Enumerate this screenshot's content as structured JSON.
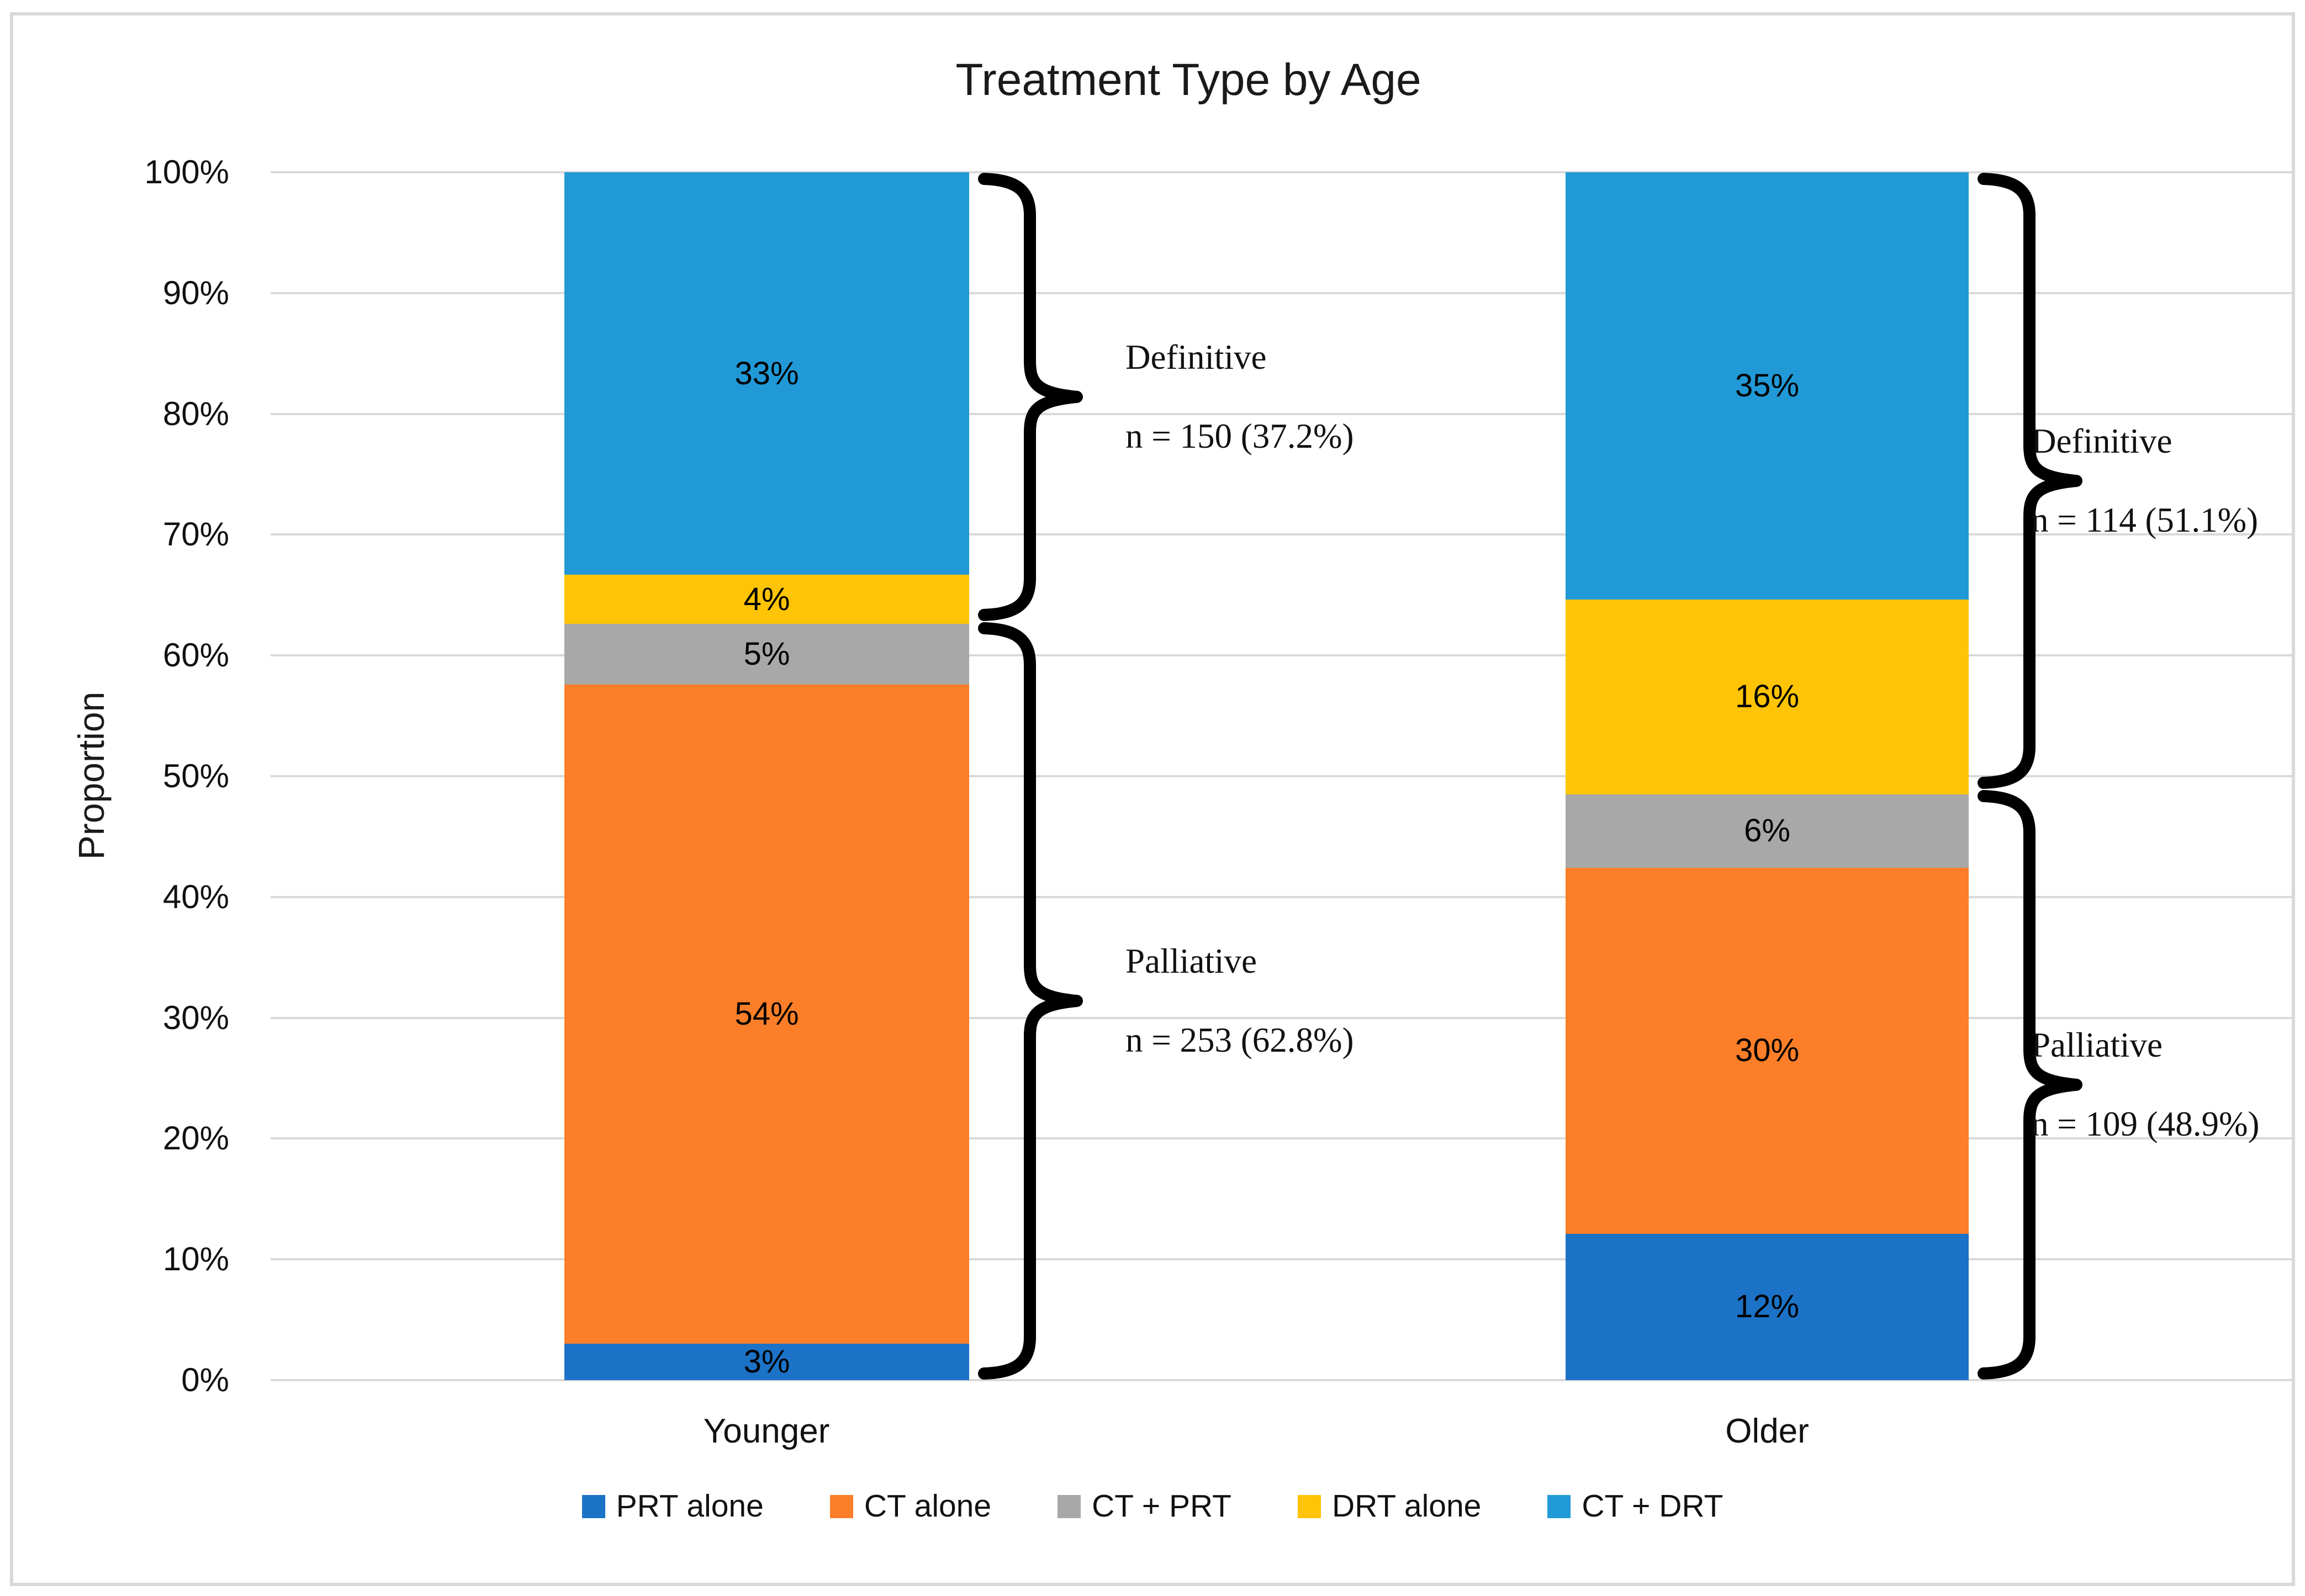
{
  "title": "Treatment Type by Age",
  "y_axis": {
    "label": "Proportion",
    "ticks": [
      "0%",
      "10%",
      "20%",
      "30%",
      "40%",
      "50%",
      "60%",
      "70%",
      "80%",
      "90%",
      "100%"
    ]
  },
  "x_axis": {
    "categories": [
      "Younger",
      "Older"
    ]
  },
  "legend": {
    "items": [
      "PRT alone",
      "CT alone",
      "CT + PRT",
      "DRT alone",
      "CT + DRT"
    ]
  },
  "colors": {
    "prt_alone": "#1C72C6",
    "ct_alone": "#FC7E28",
    "ct_prt": "#A8A8A8",
    "drt_alone": "#FFC405",
    "ct_drt": "#2199D6",
    "gridline": "#D9D9D9",
    "border": "#D9D9D9",
    "text": "#111111"
  },
  "chart_data": {
    "type": "bar",
    "subtype": "stacked-100-percent",
    "title": "Treatment Type by Age",
    "ylabel": "Proportion",
    "xlabel": "",
    "ylim": [
      0,
      100
    ],
    "yticks": [
      "0%",
      "10%",
      "20%",
      "30%",
      "40%",
      "50%",
      "60%",
      "70%",
      "80%",
      "90%",
      "100%"
    ],
    "grid": true,
    "legend_position": "bottom",
    "categories": [
      "Younger",
      "Older"
    ],
    "series": [
      {
        "name": "PRT alone",
        "color": "#1C72C6",
        "values": [
          3,
          12
        ]
      },
      {
        "name": "CT alone",
        "color": "#FC7E28",
        "values": [
          54,
          30
        ]
      },
      {
        "name": "CT + PRT",
        "color": "#A8A8A8",
        "values": [
          5,
          6
        ]
      },
      {
        "name": "DRT alone",
        "color": "#FFC405",
        "values": [
          4,
          16
        ]
      },
      {
        "name": "CT + DRT",
        "color": "#2199D6",
        "values": [
          33,
          35
        ]
      }
    ],
    "annotations": [
      {
        "category": "Younger",
        "label": "Definitive",
        "text": "n = 150 (37.2%)",
        "n": 150,
        "pct": 37.2,
        "span_pct": [
          62.8,
          100
        ]
      },
      {
        "category": "Younger",
        "label": "Palliative",
        "text": "n = 253 (62.8%)",
        "n": 253,
        "pct": 62.8,
        "span_pct": [
          0,
          62.8
        ]
      },
      {
        "category": "Older",
        "label": "Definitive",
        "text": "n = 114 (51.1%)",
        "n": 114,
        "pct": 51.1,
        "span_pct": [
          48.9,
          100
        ]
      },
      {
        "category": "Older",
        "label": "Palliative",
        "text": "n = 109 (48.9%)",
        "n": 109,
        "pct": 48.9,
        "span_pct": [
          0,
          48.9
        ]
      }
    ]
  }
}
